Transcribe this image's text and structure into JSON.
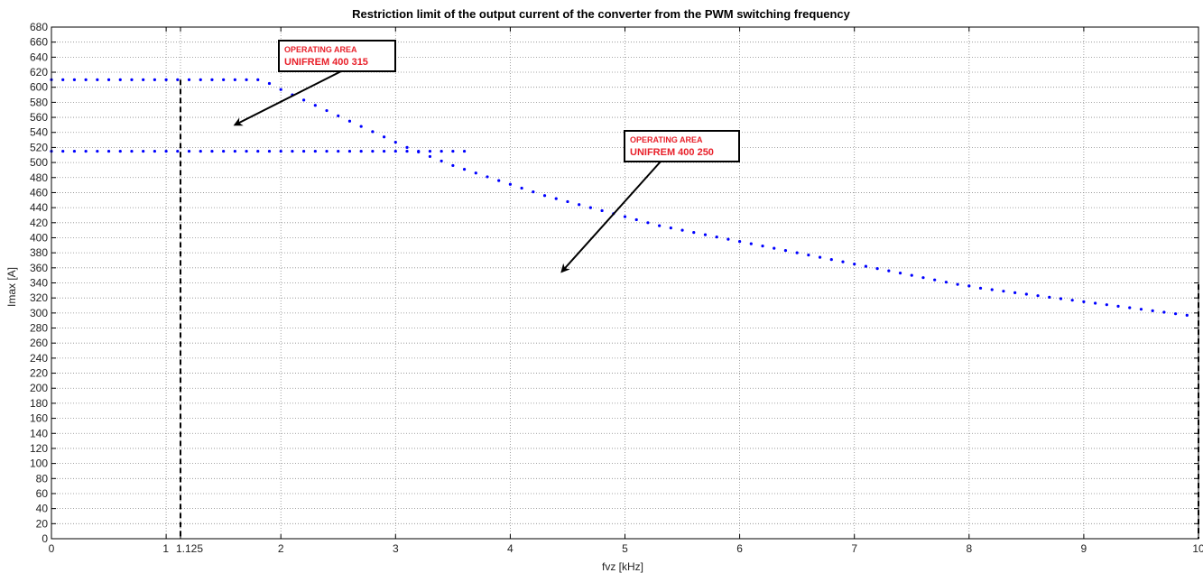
{
  "chart_data": {
    "type": "scatter",
    "title": "Restriction limit of the output current of the converter from the PWM switching frequency",
    "xlabel": "fvz [kHz]",
    "ylabel": "Imax [A]",
    "xlim": [
      0,
      10
    ],
    "ylim": [
      0,
      680
    ],
    "x_ticks": [
      "0",
      "1",
      "1.125",
      "2",
      "3",
      "4",
      "5",
      "6",
      "7",
      "8",
      "9",
      "10"
    ],
    "x_tick_values": [
      0,
      1,
      1.125,
      2,
      3,
      4,
      5,
      6,
      7,
      8,
      9,
      10
    ],
    "y_ticks": [
      "0",
      "20",
      "40",
      "60",
      "80",
      "100",
      "120",
      "140",
      "160",
      "180",
      "200",
      "220",
      "240",
      "260",
      "280",
      "300",
      "320",
      "340",
      "360",
      "380",
      "400",
      "420",
      "440",
      "460",
      "480",
      "500",
      "520",
      "540",
      "560",
      "580",
      "600",
      "620",
      "640",
      "660",
      "680"
    ],
    "y_tick_values": [
      0,
      20,
      40,
      60,
      80,
      100,
      120,
      140,
      160,
      180,
      200,
      220,
      240,
      260,
      280,
      300,
      320,
      340,
      360,
      380,
      400,
      420,
      440,
      460,
      480,
      500,
      520,
      540,
      560,
      580,
      600,
      620,
      640,
      660,
      680
    ],
    "grid": true,
    "series": [
      {
        "color": "#0000ff",
        "x": [
          0,
          0.1,
          0.2,
          0.3,
          0.4,
          0.5,
          0.6,
          0.7,
          0.8,
          0.9,
          1.0,
          1.1,
          1.2,
          1.3,
          1.4,
          1.5,
          1.6,
          1.7,
          1.8,
          1.9,
          2.0,
          2.1,
          2.2,
          2.3,
          2.4,
          2.5,
          2.6,
          2.7,
          2.8,
          2.9,
          3.0,
          3.1,
          3.2,
          3.3,
          3.4,
          3.5,
          3.6,
          3.7,
          3.8,
          3.9,
          4.0,
          4.1,
          4.2,
          4.3,
          4.4,
          4.5,
          4.6,
          4.7,
          4.8,
          4.9,
          5.0,
          5.1,
          5.2,
          5.3,
          5.4,
          5.5,
          5.6,
          5.7,
          5.8,
          5.9,
          6.0,
          6.1,
          6.2,
          6.3,
          6.4,
          6.5,
          6.6,
          6.7,
          6.8,
          6.9,
          7.0,
          7.1,
          7.2,
          7.3,
          7.4,
          7.5,
          7.6,
          7.7,
          7.8,
          7.9,
          8.0,
          8.1,
          8.2,
          8.3,
          8.4,
          8.5,
          8.6,
          8.7,
          8.8,
          8.9,
          9.0,
          9.1,
          9.2,
          9.3,
          9.4,
          9.5,
          9.6,
          9.7,
          9.8,
          9.9,
          10.0
        ],
        "y": [
          610,
          610,
          610,
          610,
          610,
          610,
          610,
          610,
          610,
          610,
          610,
          610,
          610,
          610,
          610,
          610,
          610,
          610,
          610,
          605,
          597,
          590,
          583,
          576,
          569,
          562,
          555,
          548,
          541,
          534,
          527,
          520,
          514,
          508,
          502,
          496,
          491,
          486,
          481,
          476,
          471,
          466,
          461,
          456,
          452,
          448,
          444,
          440,
          436,
          432,
          428,
          424,
          420,
          416,
          413,
          410,
          407,
          404,
          401,
          398,
          395,
          392,
          389,
          386,
          383,
          380,
          377,
          374,
          371,
          368,
          365,
          362,
          359,
          356,
          353,
          350,
          347,
          344,
          341,
          338,
          336,
          333,
          331,
          329,
          327,
          325,
          323,
          321,
          319,
          317,
          315,
          313,
          311,
          309,
          307,
          305,
          303,
          301,
          299,
          297,
          340
        ]
      },
      {
        "color": "#0000ff",
        "x": [
          0,
          0.1,
          0.2,
          0.3,
          0.4,
          0.5,
          0.6,
          0.7,
          0.8,
          0.9,
          1.0,
          1.1,
          1.2,
          1.3,
          1.4,
          1.5,
          1.6,
          1.7,
          1.8,
          1.9,
          2.0,
          2.1,
          2.2,
          2.3,
          2.4,
          2.5,
          2.6,
          2.7,
          2.8,
          2.9,
          3.0,
          3.1,
          3.2,
          3.3,
          3.4,
          3.5,
          3.6
        ],
        "y": [
          515,
          515,
          515,
          515,
          515,
          515,
          515,
          515,
          515,
          515,
          515,
          515,
          515,
          515,
          515,
          515,
          515,
          515,
          515,
          515,
          515,
          515,
          515,
          515,
          515,
          515,
          515,
          515,
          515,
          515,
          515,
          515,
          515,
          515,
          515,
          515,
          515
        ]
      }
    ],
    "vertical_lines": [
      {
        "x": 1.125,
        "y_top": 610,
        "style": "dashed",
        "color": "#000000"
      },
      {
        "x": 10,
        "y_top": 338,
        "style": "dashed",
        "color": "#000000"
      }
    ],
    "annotations": [
      {
        "line1": "OPERATING AREA",
        "line2": "UNIFREM 400 315",
        "arrow_to": [
          1.6,
          550
        ]
      },
      {
        "line1": "OPERATING AREA",
        "line2": "UNIFREM 400 250",
        "arrow_to": [
          4.45,
          355
        ]
      }
    ]
  }
}
